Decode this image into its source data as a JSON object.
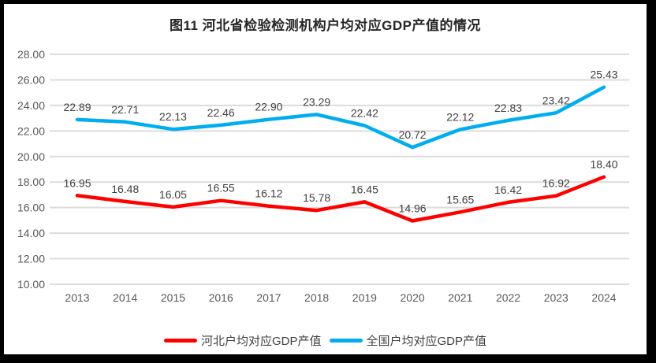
{
  "chart_data": {
    "type": "line",
    "title": "图11 河北省检验检测机构户均对应GDP产值的情况",
    "categories": [
      "2013",
      "2014",
      "2015",
      "2016",
      "2017",
      "2018",
      "2019",
      "2020",
      "2021",
      "2022",
      "2023",
      "2024"
    ],
    "series": [
      {
        "name": "河北户均对应GDP产值",
        "color": "#FF0000",
        "values": [
          16.95,
          16.48,
          16.05,
          16.55,
          16.12,
          15.78,
          16.45,
          14.96,
          15.65,
          16.42,
          16.92,
          18.4
        ]
      },
      {
        "name": "全国户均对应GDP产值",
        "color": "#00AEEF",
        "values": [
          22.89,
          22.71,
          22.13,
          22.46,
          22.9,
          23.29,
          22.42,
          20.72,
          22.12,
          22.83,
          23.42,
          25.43
        ]
      }
    ],
    "ylim": [
      10,
      28
    ],
    "ytick_step": 2,
    "ytick_labels": [
      "10.00",
      "12.00",
      "14.00",
      "16.00",
      "18.00",
      "20.00",
      "22.00",
      "24.00",
      "26.00",
      "28.00"
    ],
    "xlabel": "",
    "ylabel": "",
    "grid": "horizontal",
    "gridline_color": "#DCDCDC",
    "data_labels": true,
    "legend_position": "bottom",
    "frame_color": "#000000",
    "background_color": "#FFFFFF"
  }
}
